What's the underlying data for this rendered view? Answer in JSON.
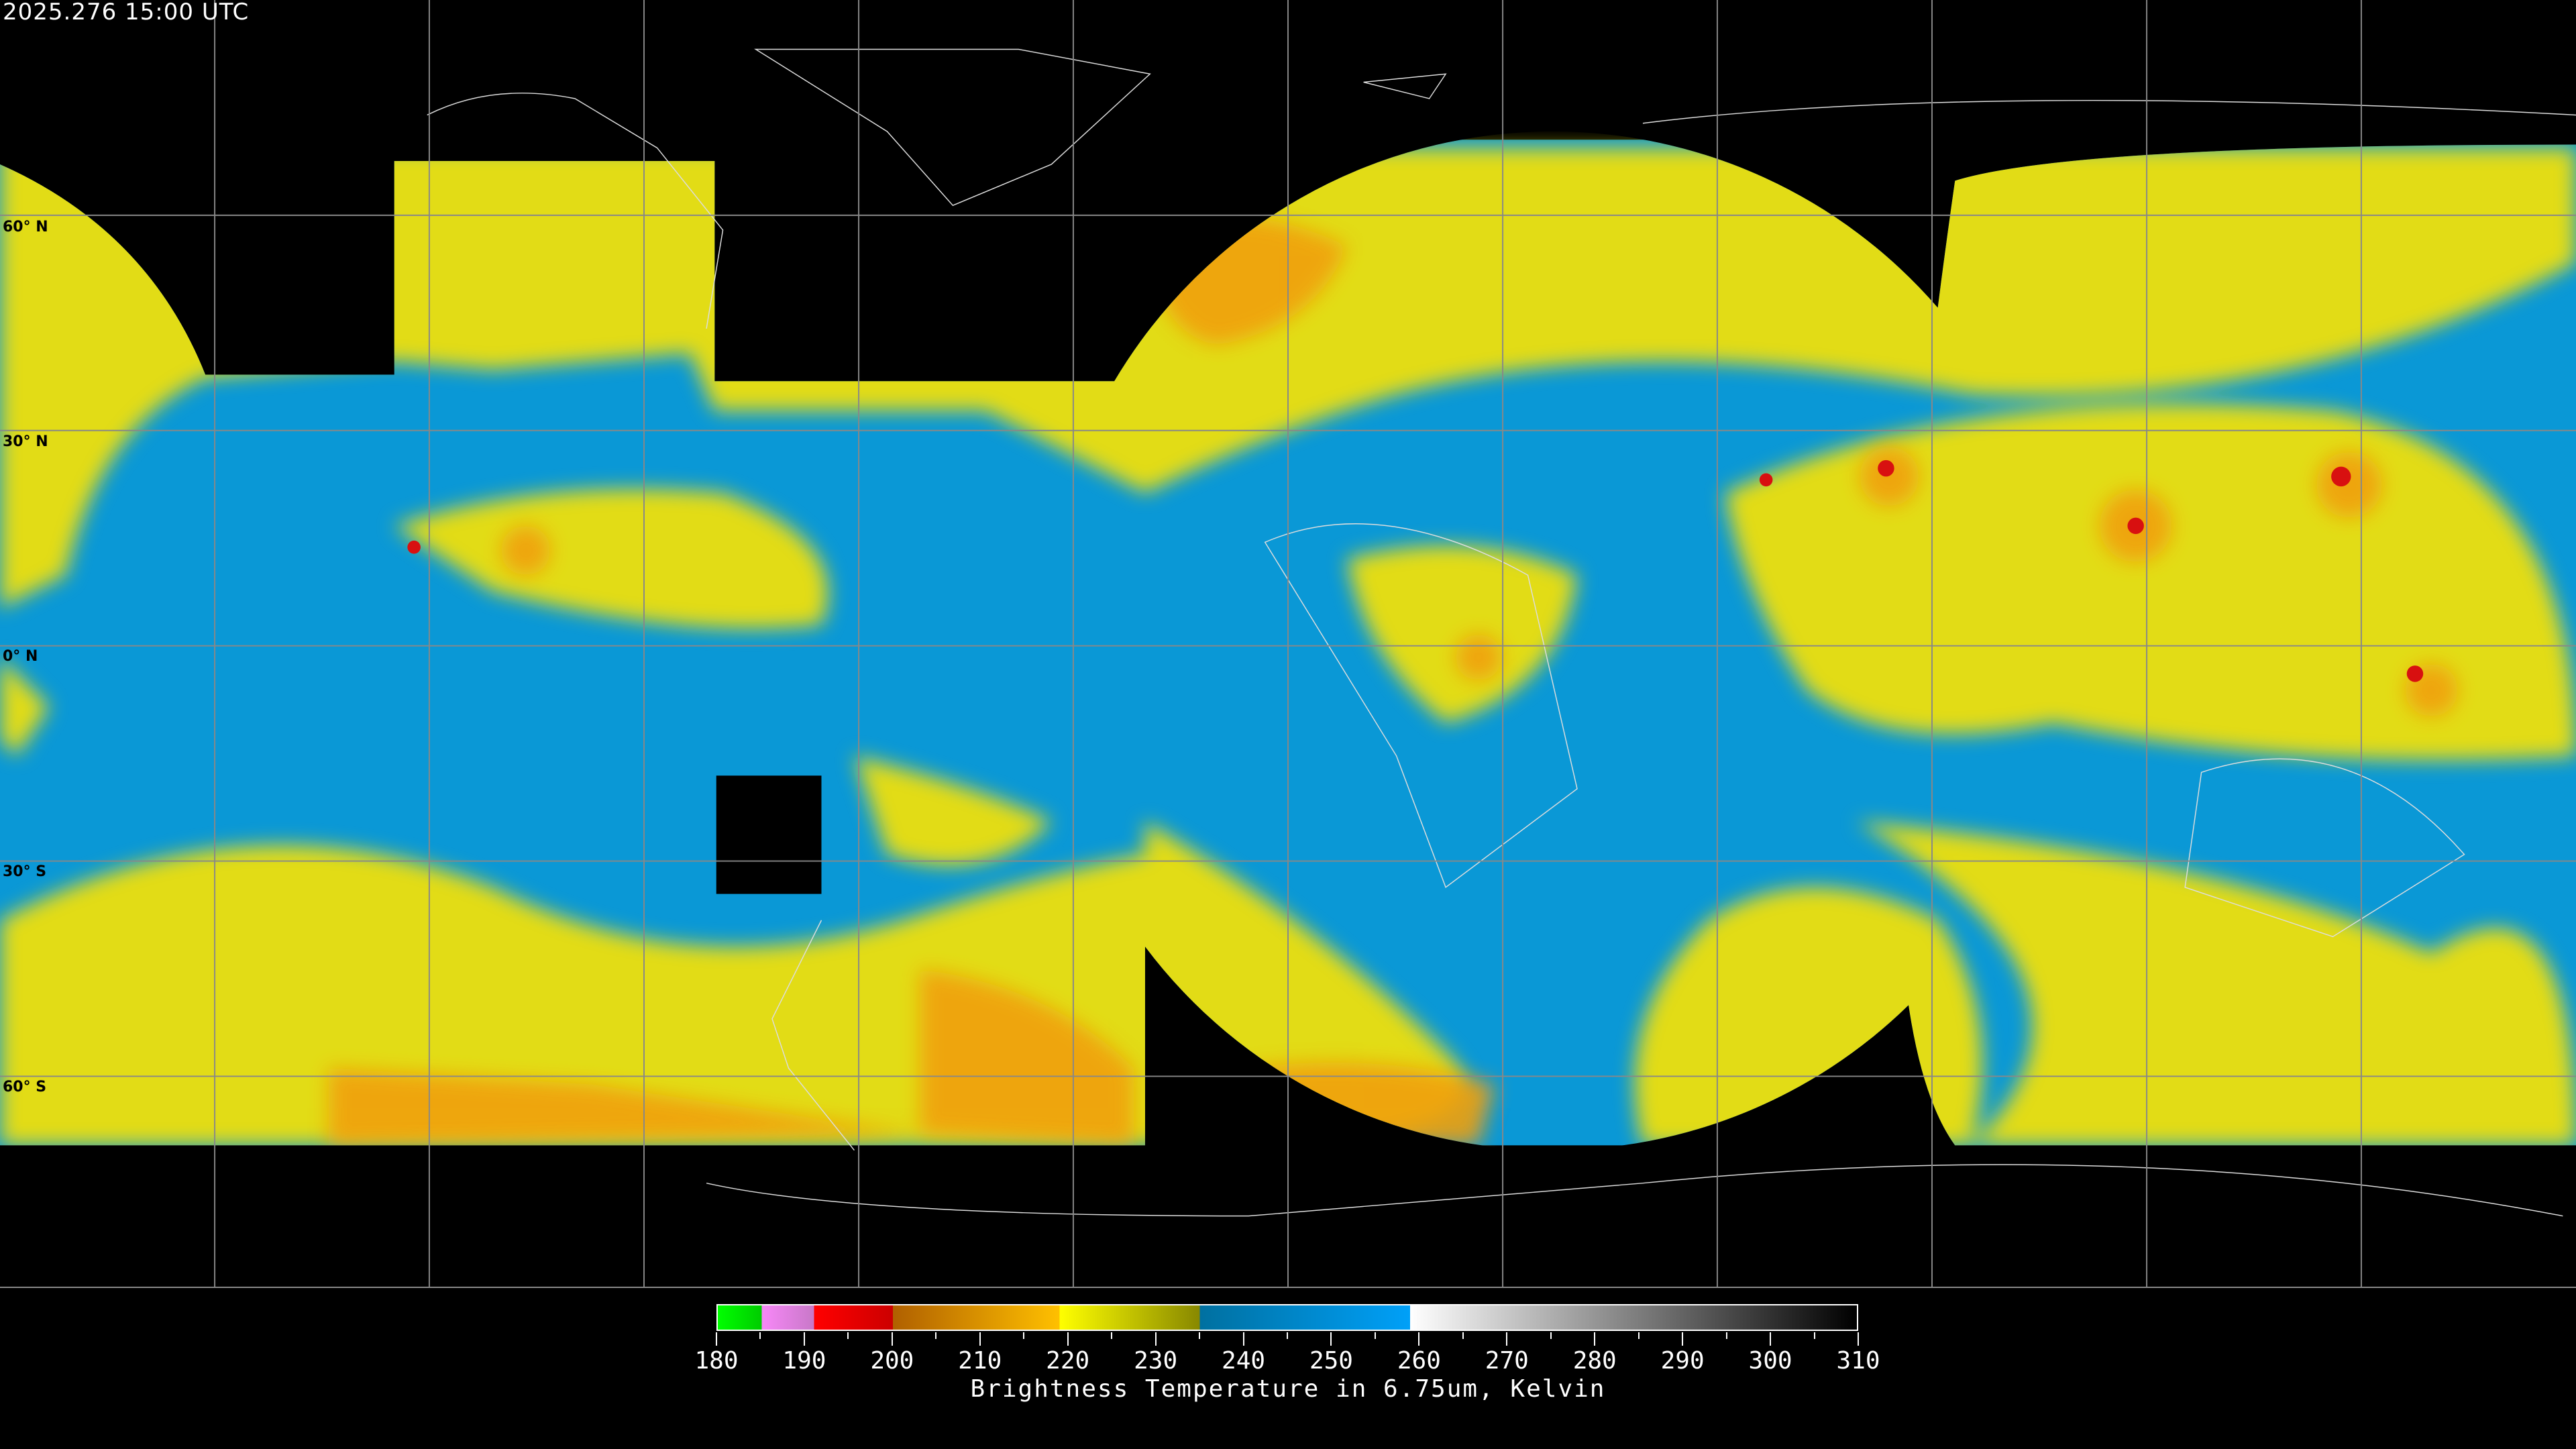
{
  "timestamp": "2025.276 15:00 UTC",
  "latitude_labels": [
    "60° N",
    "30° N",
    "0° N",
    "30° S",
    "60° S"
  ],
  "colors": {
    "background": "#000000",
    "moist_blue": "#0a98d6",
    "dry_yellow": "#e2dc12",
    "cold_orange": "#f0a010",
    "deep_red": "#d81010"
  },
  "colorbar": {
    "title": "Brightness Temperature in 6.75um, Kelvin",
    "min": 180,
    "max": 310,
    "tick_labels": [
      "180",
      "190",
      "200",
      "210",
      "220",
      "230",
      "240",
      "250",
      "260",
      "270",
      "280",
      "290",
      "300",
      "310"
    ],
    "segments": [
      {
        "from": 180,
        "to": 185,
        "start": "#00ff00",
        "end": "#00cc00"
      },
      {
        "from": 185,
        "to": 191,
        "start": "#f888f8",
        "end": "#c878c8"
      },
      {
        "from": 191,
        "to": 200,
        "start": "#ff0000",
        "end": "#cc0000"
      },
      {
        "from": 200,
        "to": 219,
        "start": "#b06000",
        "end": "#ffc000"
      },
      {
        "from": 219,
        "to": 235,
        "start": "#ffff00",
        "end": "#888800"
      },
      {
        "from": 235,
        "to": 259,
        "start": "#0070a0",
        "end": "#00a0f8"
      },
      {
        "from": 259,
        "to": 310,
        "start": "#ffffff",
        "end": "#000000"
      }
    ]
  }
}
